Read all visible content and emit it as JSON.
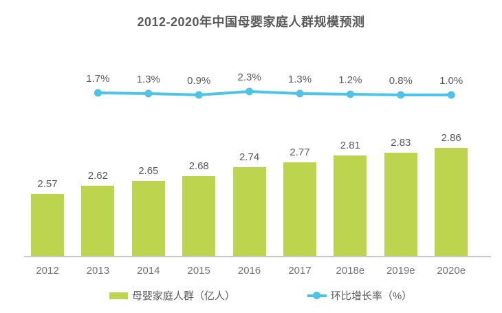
{
  "chart_data": {
    "type": "combo",
    "subtypes": [
      "bar",
      "line"
    ],
    "title": "2012-2020年中国母婴家庭人群规模预测",
    "categories": [
      "2012",
      "2013",
      "2014",
      "2015",
      "2016",
      "2017",
      "2018e",
      "2019e",
      "2020e"
    ],
    "series": [
      {
        "name": "母婴家庭人群（亿人）",
        "type": "bar",
        "unit": "亿人",
        "values": [
          2.57,
          2.62,
          2.65,
          2.68,
          2.74,
          2.77,
          2.81,
          2.83,
          2.86
        ],
        "value_labels": [
          "2.57",
          "2.62",
          "2.65",
          "2.68",
          "2.74",
          "2.77",
          "2.81",
          "2.83",
          "2.86"
        ]
      },
      {
        "name": "环比增长率（%）",
        "type": "line",
        "unit": "%",
        "start_category_index": 1,
        "x": [
          "2013",
          "2014",
          "2015",
          "2016",
          "2017",
          "2018e",
          "2019e",
          "2020e"
        ],
        "values": [
          1.7,
          1.3,
          0.9,
          2.3,
          1.3,
          1.2,
          0.8,
          1.0
        ],
        "value_labels": [
          "1.7%",
          "1.3%",
          "0.9%",
          "2.3%",
          "1.3%",
          "1.2%",
          "0.8%",
          "1.0%"
        ]
      }
    ],
    "value_labels_shown": true,
    "grid": false,
    "legend_position": "bottom",
    "y_axis_shown": false,
    "colors": {
      "bar": "#bdd44f",
      "line": "#4ec3e8",
      "title_text": "#595959",
      "value_label": "#595959",
      "axis_label": "#737373",
      "axis_line": "#c9c9c9",
      "background": "#ffffff"
    }
  }
}
